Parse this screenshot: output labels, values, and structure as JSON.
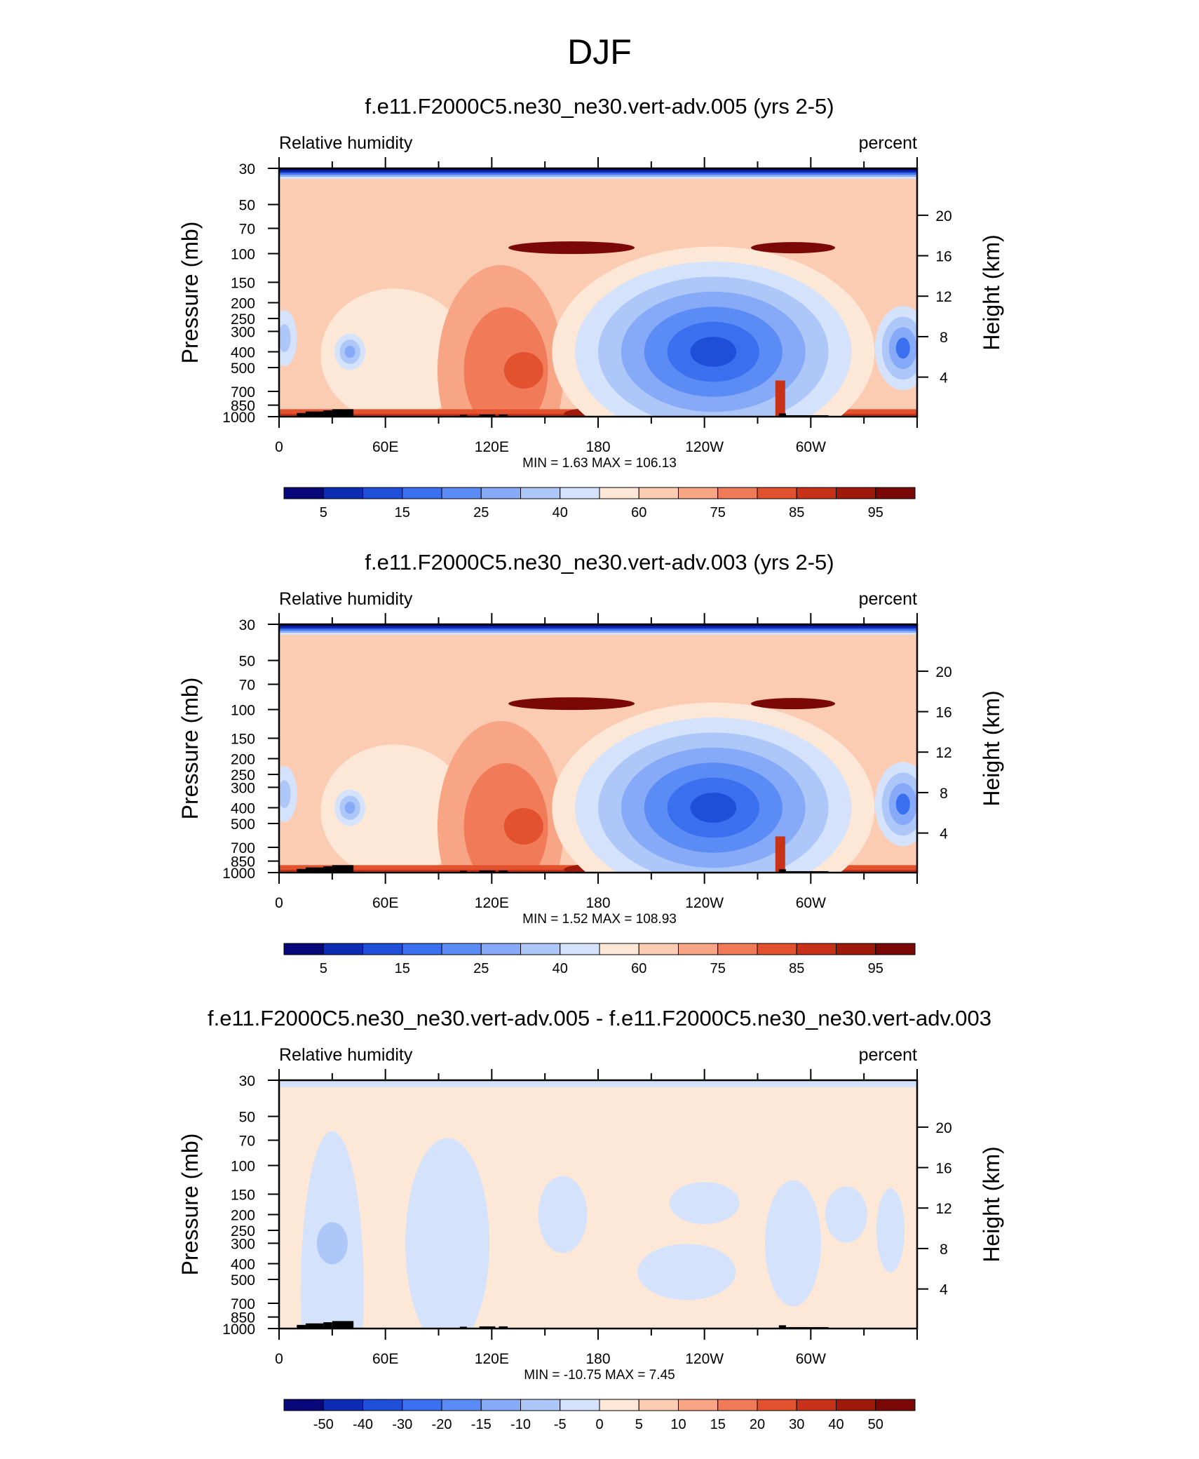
{
  "page_title": "DJF",
  "chart_data": [
    {
      "type": "heatmap",
      "title": "f.e11.F2000C5.ne30_ne30.vert-adv.005 (yrs 2-5)",
      "left_label": "Relative humidity",
      "right_label": "percent",
      "ylabel": "Pressure (mb)",
      "ylabel_right": "Height (km)",
      "x_ticks": [
        "0",
        "60E",
        "120E",
        "180",
        "120W",
        "60W"
      ],
      "x_range": [
        0,
        360
      ],
      "y_ticks": [
        "30",
        "50",
        "70",
        "100",
        "150",
        "200",
        "250",
        "300",
        "400",
        "500",
        "700",
        "850",
        "1000"
      ],
      "y_range_mb": [
        1000,
        30
      ],
      "height_ticks": [
        "20",
        "16",
        "12",
        "8",
        "4"
      ],
      "stats": "MIN =   1.63  MAX = 106.13",
      "min": 1.63,
      "max": 106.13,
      "colorbar_labels": [
        "5",
        "15",
        "25",
        "40",
        "60",
        "75",
        "85",
        "95"
      ],
      "colorbar_levels": [
        5,
        10,
        15,
        20,
        25,
        30,
        40,
        50,
        60,
        70,
        75,
        80,
        85,
        90,
        95
      ]
    },
    {
      "type": "heatmap",
      "title": "f.e11.F2000C5.ne30_ne30.vert-adv.003 (yrs 2-5)",
      "left_label": "Relative humidity",
      "right_label": "percent",
      "ylabel": "Pressure (mb)",
      "ylabel_right": "Height (km)",
      "x_ticks": [
        "0",
        "60E",
        "120E",
        "180",
        "120W",
        "60W"
      ],
      "x_range": [
        0,
        360
      ],
      "y_ticks": [
        "30",
        "50",
        "70",
        "100",
        "150",
        "200",
        "250",
        "300",
        "400",
        "500",
        "700",
        "850",
        "1000"
      ],
      "y_range_mb": [
        1000,
        30
      ],
      "height_ticks": [
        "20",
        "16",
        "12",
        "8",
        "4"
      ],
      "stats": "MIN =   1.52  MAX = 108.93",
      "min": 1.52,
      "max": 108.93,
      "colorbar_labels": [
        "5",
        "15",
        "25",
        "40",
        "60",
        "75",
        "85",
        "95"
      ],
      "colorbar_levels": [
        5,
        10,
        15,
        20,
        25,
        30,
        40,
        50,
        60,
        70,
        75,
        80,
        85,
        90,
        95
      ]
    },
    {
      "type": "heatmap",
      "title": "f.e11.F2000C5.ne30_ne30.vert-adv.005 - f.e11.F2000C5.ne30_ne30.vert-adv.003",
      "left_label": "Relative humidity",
      "right_label": "percent",
      "ylabel": "Pressure (mb)",
      "ylabel_right": "Height (km)",
      "x_ticks": [
        "0",
        "60E",
        "120E",
        "180",
        "120W",
        "60W"
      ],
      "x_range": [
        0,
        360
      ],
      "y_ticks": [
        "30",
        "50",
        "70",
        "100",
        "150",
        "200",
        "250",
        "300",
        "400",
        "500",
        "700",
        "850",
        "1000"
      ],
      "y_range_mb": [
        1000,
        30
      ],
      "height_ticks": [
        "20",
        "16",
        "12",
        "8",
        "4"
      ],
      "stats": "MIN = -10.75  MAX =   7.45",
      "min": -10.75,
      "max": 7.45,
      "colorbar_labels": [
        "-50",
        "-40",
        "-30",
        "-20",
        "-15",
        "-10",
        "-5",
        "0",
        "5",
        "10",
        "15",
        "20",
        "30",
        "40",
        "50"
      ],
      "colorbar_levels": [
        -50,
        -40,
        -30,
        -20,
        -15,
        -10,
        -5,
        0,
        5,
        10,
        15,
        20,
        30,
        40,
        50
      ]
    }
  ],
  "colors": {
    "scale": [
      "#08087a",
      "#0d2cb4",
      "#1f4fd8",
      "#3a6ff0",
      "#5b8cf5",
      "#86aaf8",
      "#aec7f9",
      "#d4e3fb",
      "#fde7d7",
      "#fbcbb2",
      "#f7a584",
      "#f17b58",
      "#e3522f",
      "#c83218",
      "#a01a0c",
      "#7a0806"
    ],
    "orography": "#000000"
  }
}
